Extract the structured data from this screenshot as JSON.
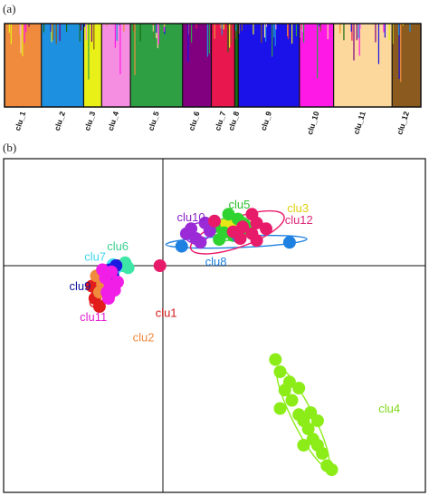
{
  "panels": {
    "a_label": "(a)",
    "b_label": "(b)"
  },
  "chart_data": [
    {
      "type": "bar",
      "subtype": "stacked-admixture",
      "categories": [
        "clu_1",
        "clu_2",
        "clu_3",
        "clu_4",
        "clu_5",
        "clu_6",
        "clu_7",
        "clu_8",
        "clu_9",
        "clu_10",
        "clu_11",
        "clu_12"
      ],
      "cluster_colors": [
        "#f08a3c",
        "#1e90e0",
        "#e8f018",
        "#f58ee0",
        "#2ea043",
        "#800080",
        "#e8174e",
        "#1a6b12",
        "#1a12e8",
        "#ff19e6",
        "#fcd89c",
        "#8b5a1e"
      ],
      "cluster_widths": [
        41,
        47,
        20,
        32,
        58,
        32,
        26,
        4,
        68,
        38,
        65,
        32
      ],
      "ylim": [
        0,
        1
      ]
    },
    {
      "type": "scatter",
      "xlim": [
        -1,
        1
      ],
      "ylim": [
        -1,
        1
      ],
      "axes_cross_at": [
        0,
        0
      ],
      "series": [
        {
          "name": "clu1",
          "color": "#e21b1b",
          "label_color": "#d11a1a",
          "points": [
            [
              -0.45,
              -0.16
            ],
            [
              -0.4,
              -0.12
            ],
            [
              -0.38,
              -0.08
            ],
            [
              -0.42,
              -0.2
            ],
            [
              -0.35,
              -0.05
            ],
            [
              -0.47,
              -0.1
            ],
            [
              -0.3,
              0.0
            ]
          ]
        },
        {
          "name": "clu2",
          "color": "#f08a3c",
          "label_color": "#f08a3c",
          "points": [
            [
              -0.44,
              -0.05
            ],
            [
              -0.4,
              -0.09
            ],
            [
              -0.36,
              -0.02
            ],
            [
              -0.42,
              -0.13
            ]
          ]
        },
        {
          "name": "clu3",
          "color": "#e8e818",
          "label_color": "#e0d010",
          "points": [
            [
              0.28,
              0.44
            ],
            [
              0.25,
              0.41
            ],
            [
              0.31,
              0.47
            ]
          ]
        },
        {
          "name": "clu4",
          "color": "#8cec18",
          "label_color": "#7fd81a",
          "points": [
            [
              0.48,
              -0.46
            ],
            [
              0.5,
              -0.52
            ],
            [
              0.52,
              -0.61
            ],
            [
              0.55,
              -0.66
            ],
            [
              0.58,
              -0.73
            ],
            [
              0.6,
              -0.76
            ],
            [
              0.62,
              -0.8
            ],
            [
              0.64,
              -0.85
            ],
            [
              0.66,
              -0.88
            ],
            [
              0.68,
              -0.92
            ],
            [
              0.63,
              -0.72
            ],
            [
              0.58,
              -0.6
            ],
            [
              0.54,
              -0.57
            ],
            [
              0.5,
              -0.7
            ],
            [
              0.6,
              -0.88
            ],
            [
              0.7,
              -0.98
            ],
            [
              0.72,
              -1.0
            ],
            [
              0.66,
              -0.76
            ]
          ]
        },
        {
          "name": "clu5",
          "color": "#2fd32f",
          "label_color": "#2fc02f",
          "points": [
            [
              0.28,
              0.53
            ],
            [
              0.32,
              0.48
            ],
            [
              0.22,
              0.4
            ],
            [
              0.35,
              0.42
            ],
            [
              0.26,
              0.34
            ],
            [
              0.3,
              0.31
            ],
            [
              0.24,
              0.27
            ],
            [
              0.36,
              0.37
            ]
          ]
        },
        {
          "name": "clu6",
          "color": "#3ce6a6",
          "label_color": "#3ccf90",
          "points": [
            [
              -0.25,
              0.03
            ],
            [
              -0.27,
              0.0
            ],
            [
              -0.23,
              -0.01
            ]
          ]
        },
        {
          "name": "clu7",
          "color": "#40e0f0",
          "label_color": "#40d6ee",
          "points": [
            [
              -0.33,
              0.01
            ],
            [
              -0.31,
              -0.01
            ]
          ]
        },
        {
          "name": "clu8",
          "color": "#1e80e0",
          "label_color": "#1e80e0",
          "points": [
            [
              0.54,
              0.24
            ],
            [
              0.32,
              0.3
            ],
            [
              0.08,
              0.2
            ]
          ]
        },
        {
          "name": "clu9",
          "color": "#1a1ae0",
          "label_color": "#10109c",
          "points": [
            [
              -0.35,
              -0.02
            ],
            [
              -0.33,
              -0.05
            ],
            [
              -0.31,
              0.0
            ]
          ]
        },
        {
          "name": "clu10",
          "color": "#9a2bd6",
          "label_color": "#8a22c8",
          "points": [
            [
              0.1,
              0.33
            ],
            [
              0.14,
              0.28
            ],
            [
              0.12,
              0.38
            ],
            [
              0.18,
              0.44
            ],
            [
              0.16,
              0.24
            ],
            [
              0.2,
              0.36
            ]
          ]
        },
        {
          "name": "clu11",
          "color": "#f01ee6",
          "label_color": "#e01fd2",
          "points": [
            [
              -0.35,
              -0.1
            ],
            [
              -0.38,
              -0.06
            ],
            [
              -0.32,
              -0.12
            ],
            [
              -0.36,
              -0.16
            ],
            [
              -0.4,
              -0.02
            ],
            [
              -0.3,
              -0.08
            ],
            [
              -0.34,
              -0.03
            ],
            [
              -0.37,
              -0.13
            ]
          ]
        },
        {
          "name": "clu12",
          "color": "#e81a6a",
          "label_color": "#dd2878",
          "points": [
            [
              0.3,
              0.35
            ],
            [
              0.34,
              0.4
            ],
            [
              0.38,
              0.33
            ],
            [
              0.4,
              0.44
            ],
            [
              0.22,
              0.46
            ],
            [
              0.33,
              0.28
            ],
            [
              0.4,
              0.26
            ],
            [
              -0.02,
              0.0
            ],
            [
              0.38,
              0.53
            ],
            [
              0.44,
              0.38
            ]
          ]
        }
      ]
    }
  ]
}
